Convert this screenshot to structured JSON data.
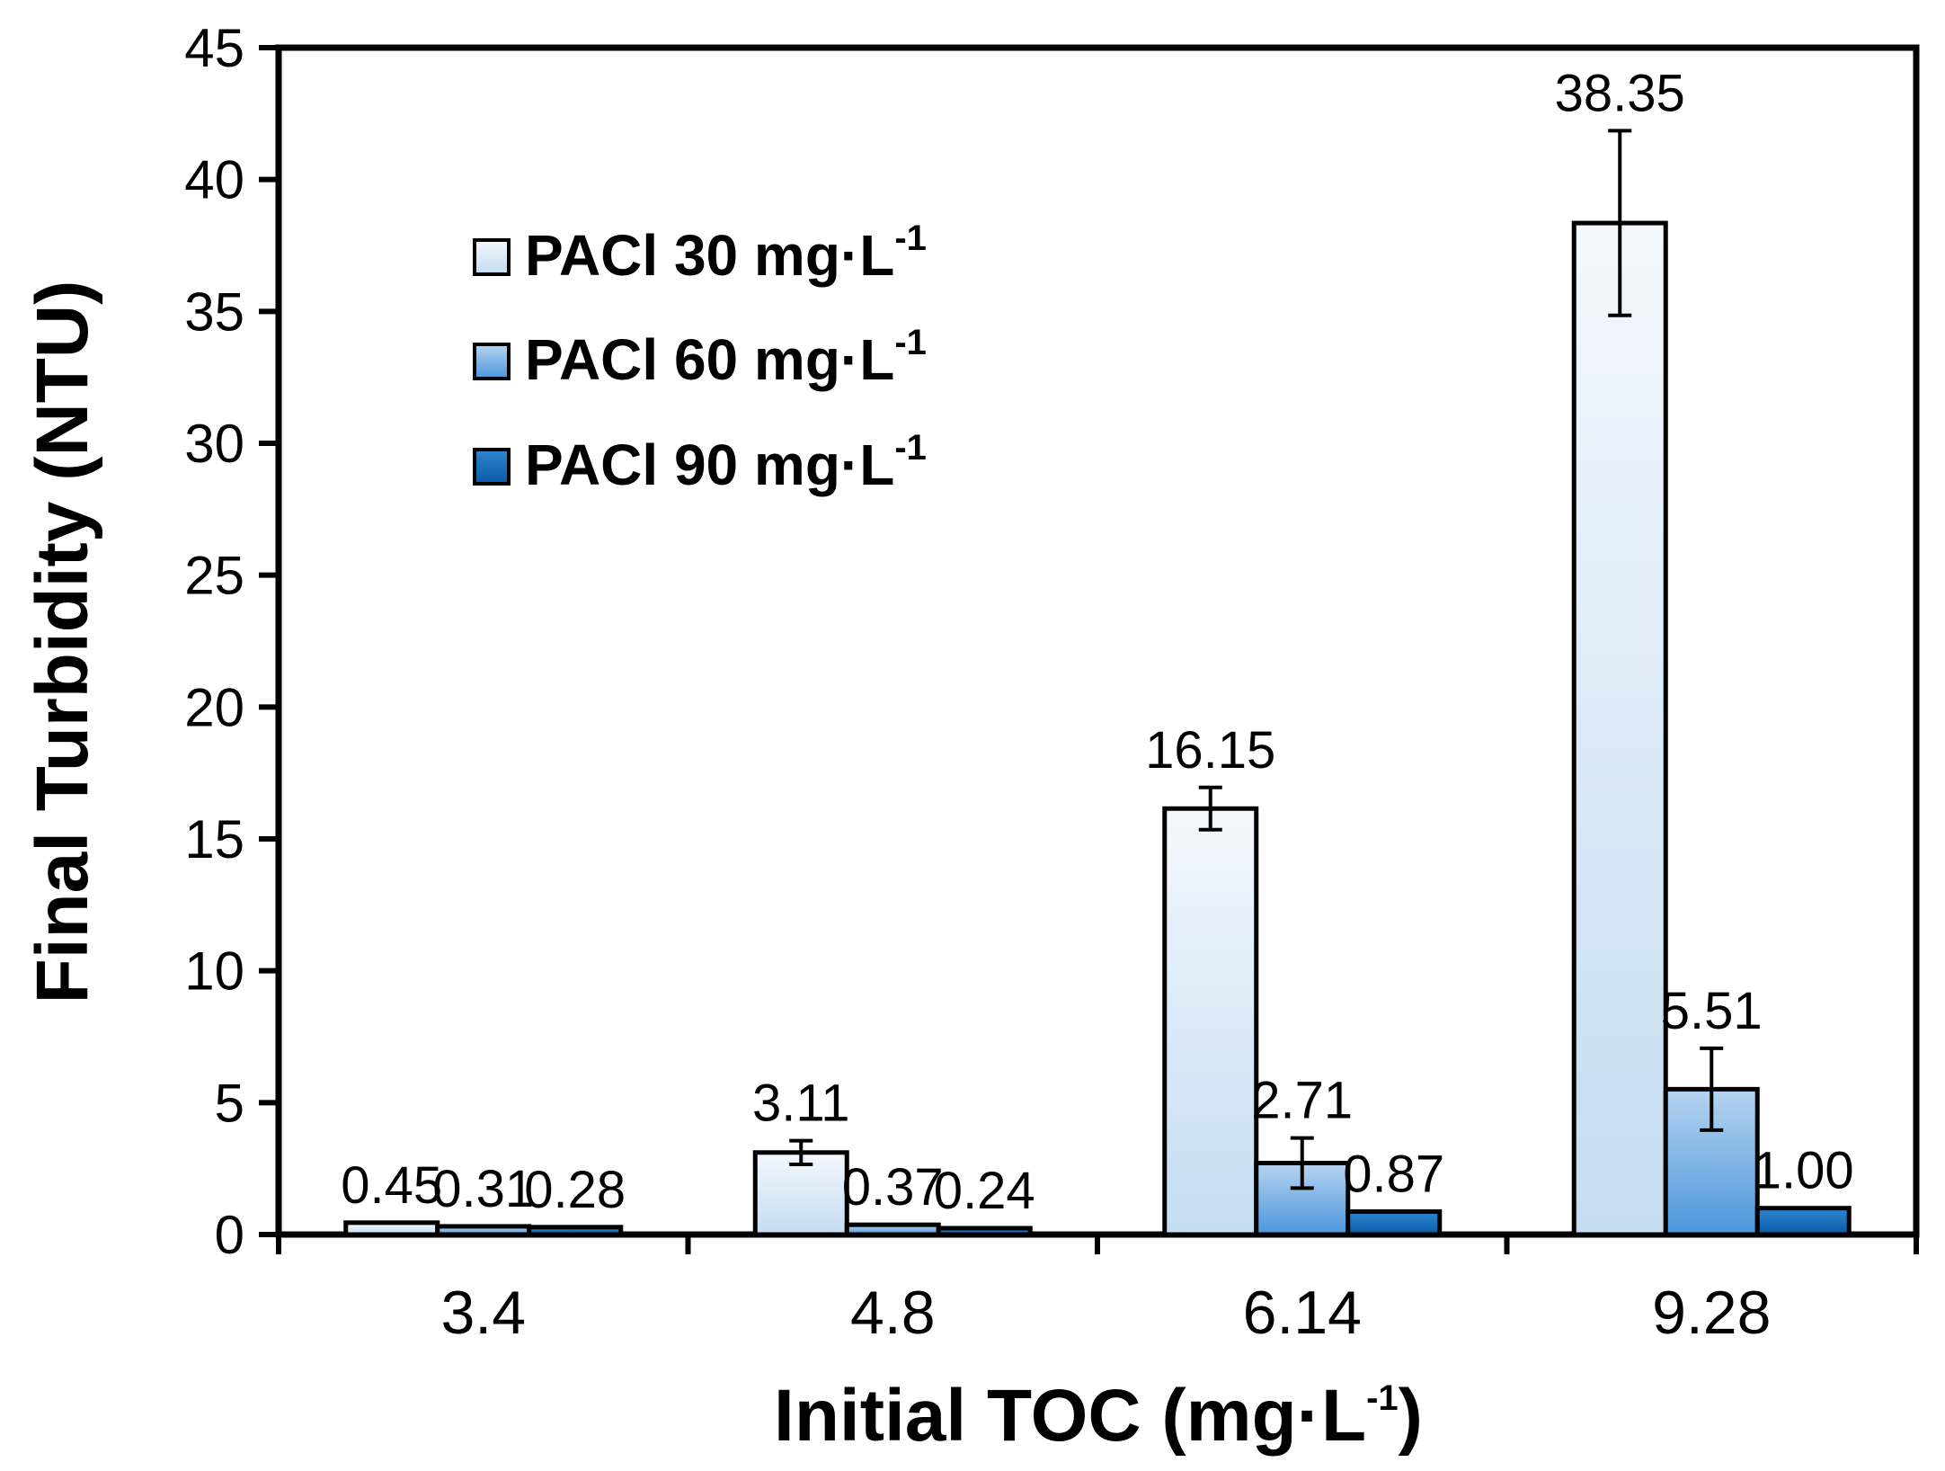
{
  "chart_data": {
    "type": "bar",
    "xlabel": "Initial TOC (mg·L",
    "xlabel_sup": "-1",
    "xlabel_close": ")",
    "ylabel": "Final Turbidity (NTU)",
    "ylim": [
      0,
      45
    ],
    "yticks": [
      0,
      5,
      10,
      15,
      20,
      25,
      30,
      35,
      40,
      45
    ],
    "categories": [
      "3.4",
      "4.8",
      "6.14",
      "9.28"
    ],
    "legend_position": "top-left",
    "series": [
      {
        "name": "PACl 30  mg·L",
        "name_sup": "-1",
        "color_top": "#f4f8fd",
        "color_bottom": "#c4dcf2",
        "values": [
          0.45,
          3.11,
          16.15,
          38.35
        ],
        "errors": [
          0.1,
          0.45,
          0.8,
          3.5
        ],
        "labels": [
          "0.45",
          "3.11",
          "16.15",
          "38.35"
        ]
      },
      {
        "name": "PACl 60  mg·L",
        "name_sup": "-1",
        "color_top": "#b7d4f0",
        "color_bottom": "#4a96dc",
        "values": [
          0.31,
          0.37,
          2.71,
          5.51
        ],
        "errors": [
          0.05,
          0.05,
          0.95,
          1.55
        ],
        "labels": [
          "0.31",
          "0.37",
          "2.71",
          "5.51"
        ]
      },
      {
        "name": "PACl 90  mg·L",
        "name_sup": "-1",
        "color_top": "#2f86cf",
        "color_bottom": "#0a5aa6",
        "values": [
          0.28,
          0.24,
          0.87,
          1.0
        ],
        "errors": [
          0.03,
          0.03,
          0.05,
          0.05
        ],
        "labels": [
          "0.28",
          "0.24",
          "0.87",
          "1.00"
        ]
      }
    ]
  }
}
